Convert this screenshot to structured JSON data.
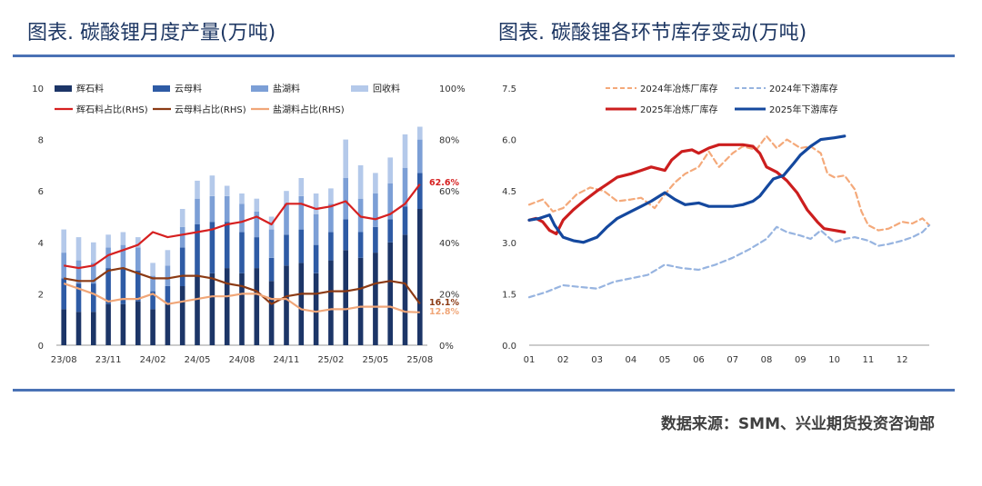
{
  "header": {
    "left_title": "图表. 碳酸锂月度产量(万吨)",
    "right_title": "图表. 碳酸锂各环节库存变动(万吨)"
  },
  "footer": {
    "source": "数据来源：SMM、兴业期货投资咨询部"
  },
  "colors": {
    "spodumene": "#1c3567",
    "lepidolite": "#2e5ba5",
    "brine": "#7c9fd6",
    "recycle": "#b4c9ea",
    "spodumene_share": "#d62020",
    "lepidolite_share": "#8b3a14",
    "brine_share": "#f0a678",
    "smelter_2024": "#f4a97a",
    "downstream_2024": "#97b4e0",
    "smelter_2025": "#cc1e1e",
    "downstream_2025": "#14489e",
    "rule": "#4a72b5",
    "title": "#1f3864"
  },
  "chart_data": [
    {
      "type": "bar",
      "title": "碳酸锂月度产量(万吨)",
      "stacked": true,
      "categories": [
        "23/08",
        "23/09",
        "23/10",
        "23/11",
        "23/12",
        "24/01",
        "24/02",
        "24/03",
        "24/04",
        "24/05",
        "24/06",
        "24/07",
        "24/08",
        "24/09",
        "24/10",
        "24/11",
        "24/12",
        "25/01",
        "25/02",
        "25/03",
        "25/04",
        "25/05",
        "25/06",
        "25/07",
        "25/08"
      ],
      "x_tick_labels": [
        "23/08",
        "23/11",
        "24/02",
        "24/05",
        "24/08",
        "24/11",
        "25/02",
        "25/05",
        "25/08"
      ],
      "x_tick_every": 3,
      "ylim": [
        0,
        10
      ],
      "y_ticks": [
        0,
        2,
        4,
        6,
        8,
        10
      ],
      "y2lim": [
        0,
        100
      ],
      "y2_ticks": [
        "0%",
        "20%",
        "40%",
        "60%",
        "80%",
        "100%"
      ],
      "series": [
        {
          "name": "辉石料",
          "kind": "bar",
          "values": [
            1.4,
            1.3,
            1.3,
            1.6,
            1.6,
            1.7,
            1.4,
            1.6,
            2.3,
            2.7,
            2.8,
            3.0,
            2.8,
            3.0,
            2.5,
            3.1,
            3.2,
            2.8,
            3.3,
            3.7,
            3.4,
            3.6,
            4.0,
            4.3,
            5.3
          ]
        },
        {
          "name": "云母料",
          "kind": "bar",
          "values": [
            1.2,
            1.1,
            1.1,
            1.4,
            1.4,
            1.2,
            0.7,
            0.7,
            1.5,
            2.0,
            2.0,
            1.8,
            1.6,
            1.2,
            0.9,
            1.2,
            1.3,
            1.1,
            1.1,
            1.2,
            1.0,
            1.0,
            0.9,
            1.1,
            1.4
          ]
        },
        {
          "name": "盐湖料",
          "kind": "bar",
          "values": [
            1.0,
            0.9,
            0.8,
            0.8,
            0.9,
            0.9,
            0.6,
            0.8,
            0.8,
            1.0,
            1.0,
            1.0,
            1.1,
            1.0,
            1.1,
            1.2,
            1.3,
            1.2,
            1.1,
            1.6,
            1.3,
            1.3,
            1.4,
            1.5,
            1.3
          ]
        },
        {
          "name": "回收料",
          "kind": "bar",
          "values": [
            0.9,
            0.9,
            0.8,
            0.5,
            0.5,
            0.4,
            0.5,
            0.6,
            0.7,
            0.7,
            0.8,
            0.4,
            0.4,
            0.5,
            0.5,
            0.5,
            0.7,
            0.8,
            0.6,
            1.5,
            1.3,
            0.8,
            1.0,
            1.3,
            0.5
          ]
        },
        {
          "name": "辉石料占比(RHS)",
          "kind": "line",
          "axis": "right",
          "values": [
            31,
            30,
            31,
            35,
            37,
            39,
            44,
            42,
            43,
            44,
            45,
            47,
            48,
            50,
            47,
            55,
            55,
            53,
            54,
            56,
            50,
            49,
            51,
            55,
            62.6
          ],
          "end_label": "62.6%"
        },
        {
          "name": "云母料占比(RHS)",
          "kind": "line",
          "axis": "right",
          "values": [
            26,
            25,
            25,
            29,
            30,
            28,
            26,
            26,
            27,
            27,
            26,
            24,
            23,
            21,
            16,
            19,
            20,
            20,
            21,
            21,
            22,
            24,
            25,
            24,
            16.1
          ],
          "end_label": "16.1%"
        },
        {
          "name": "盐湖料占比(RHS)",
          "kind": "line",
          "axis": "right",
          "values": [
            24,
            22,
            20,
            17,
            18,
            18,
            20,
            16,
            17,
            18,
            19,
            19,
            20,
            20,
            18,
            18,
            14,
            13,
            14,
            14,
            15,
            15,
            15,
            13,
            12.8
          ],
          "end_label": "12.8%"
        }
      ]
    },
    {
      "type": "line",
      "title": "碳酸锂各环节库存变动(万吨)",
      "xlabel": "",
      "ylabel": "",
      "xlim": [
        1,
        12.8
      ],
      "x_tick_labels": [
        "01",
        "02",
        "03",
        "04",
        "05",
        "06",
        "07",
        "08",
        "09",
        "10",
        "11",
        "12"
      ],
      "ylim": [
        0,
        7.5
      ],
      "y_ticks": [
        "0.0",
        "1.5",
        "3.0",
        "4.5",
        "6.0",
        "7.5"
      ],
      "series": [
        {
          "name": "2024年冶炼厂库存",
          "dash": true,
          "x": [
            1,
            1.4,
            1.7,
            2,
            2.4,
            2.8,
            3.2,
            3.6,
            4,
            4.3,
            4.7,
            5,
            5.3,
            5.6,
            6,
            6.3,
            6.6,
            7,
            7.3,
            7.7,
            8,
            8.3,
            8.6,
            9,
            9.3,
            9.6,
            9.8,
            10,
            10.3,
            10.6,
            10.8,
            11,
            11.3,
            11.6,
            12,
            12.3,
            12.6,
            12.8
          ],
          "y": [
            4.1,
            4.25,
            3.9,
            4.0,
            4.4,
            4.6,
            4.5,
            4.2,
            4.25,
            4.3,
            4.0,
            4.4,
            4.75,
            5.0,
            5.2,
            5.65,
            5.2,
            5.6,
            5.8,
            5.7,
            6.1,
            5.75,
            6.0,
            5.75,
            5.8,
            5.6,
            5.0,
            4.9,
            4.95,
            4.55,
            3.9,
            3.5,
            3.35,
            3.4,
            3.6,
            3.55,
            3.7,
            3.5
          ]
        },
        {
          "name": "2024年下游库存",
          "dash": true,
          "x": [
            1,
            1.5,
            2,
            2.5,
            3,
            3.5,
            4,
            4.5,
            5,
            5.5,
            6,
            6.5,
            7,
            7.5,
            8,
            8.3,
            8.6,
            9,
            9.3,
            9.6,
            10,
            10.3,
            10.6,
            11,
            11.3,
            11.6,
            12,
            12.3,
            12.6,
            12.8
          ],
          "y": [
            1.4,
            1.55,
            1.75,
            1.7,
            1.65,
            1.85,
            1.95,
            2.05,
            2.35,
            2.25,
            2.2,
            2.35,
            2.55,
            2.8,
            3.1,
            3.45,
            3.3,
            3.2,
            3.1,
            3.35,
            3.0,
            3.1,
            3.15,
            3.05,
            2.9,
            2.95,
            3.05,
            3.15,
            3.3,
            3.5
          ]
        },
        {
          "name": "2025年冶炼厂库存",
          "dash": false,
          "x": [
            1,
            1.2,
            1.4,
            1.6,
            1.8,
            2,
            2.3,
            2.6,
            3,
            3.3,
            3.6,
            4,
            4.3,
            4.6,
            5,
            5.2,
            5.5,
            5.8,
            6,
            6.3,
            6.6,
            7,
            7.3,
            7.6,
            7.8,
            8,
            8.3,
            8.6,
            8.9,
            9.2,
            9.5,
            9.7,
            10,
            10.3
          ],
          "y": [
            3.65,
            3.7,
            3.6,
            3.35,
            3.25,
            3.65,
            3.95,
            4.2,
            4.5,
            4.7,
            4.9,
            5.0,
            5.1,
            5.2,
            5.1,
            5.4,
            5.65,
            5.7,
            5.6,
            5.75,
            5.85,
            5.85,
            5.85,
            5.8,
            5.6,
            5.2,
            5.05,
            4.8,
            4.45,
            3.95,
            3.6,
            3.4,
            3.35,
            3.3
          ]
        },
        {
          "name": "2025年下游库存",
          "dash": false,
          "x": [
            1,
            1.3,
            1.6,
            1.75,
            2,
            2.3,
            2.6,
            3,
            3.3,
            3.6,
            4,
            4.3,
            4.6,
            5,
            5.3,
            5.6,
            6,
            6.3,
            6.6,
            7,
            7.3,
            7.6,
            7.8,
            8,
            8.2,
            8.5,
            8.8,
            9,
            9.3,
            9.6,
            10,
            10.3
          ],
          "y": [
            3.65,
            3.7,
            3.8,
            3.5,
            3.15,
            3.05,
            3.0,
            3.15,
            3.45,
            3.7,
            3.9,
            4.05,
            4.2,
            4.45,
            4.25,
            4.1,
            4.15,
            4.05,
            4.05,
            4.05,
            4.1,
            4.2,
            4.35,
            4.6,
            4.85,
            4.95,
            5.3,
            5.55,
            5.8,
            6.0,
            6.05,
            6.1
          ]
        }
      ]
    }
  ]
}
